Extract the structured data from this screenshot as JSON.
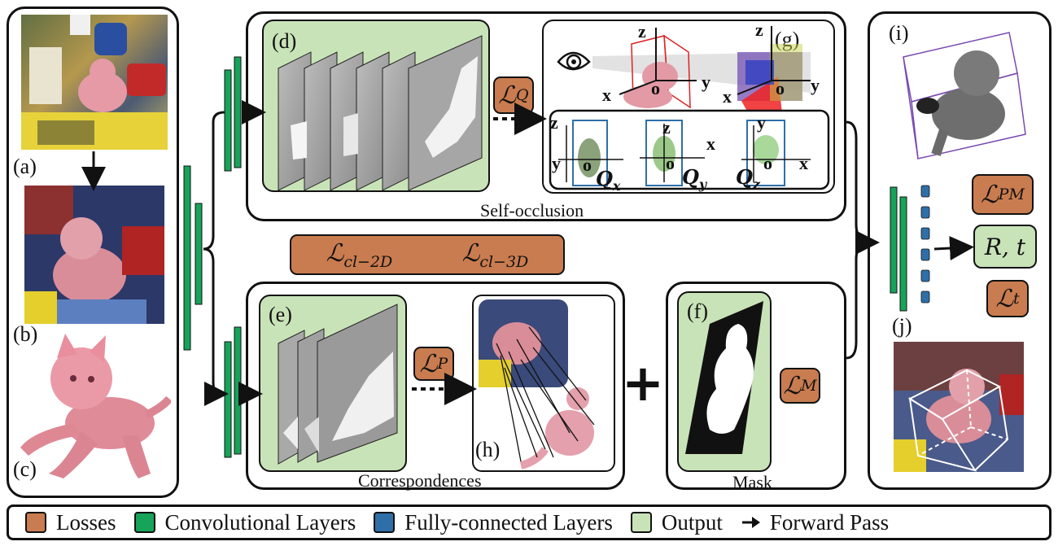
{
  "labels": {
    "a": "(a)",
    "b": "(b)",
    "c": "(c)",
    "d": "(d)",
    "e": "(e)",
    "f": "(f)",
    "g": "(g)",
    "h": "(h)",
    "i": "(i)",
    "j": "(j)"
  },
  "captions": {
    "self_occlusion": "Self-occlusion",
    "correspondences": "Correspondences",
    "mask": "Mask"
  },
  "losses": {
    "L_Q": {
      "main": "ℒ",
      "sub": "Q"
    },
    "L_P": {
      "main": "ℒ",
      "sub": "P"
    },
    "L_M": {
      "main": "ℒ",
      "sub": "M"
    },
    "L_PM": {
      "main": "ℒ",
      "sub": "PM"
    },
    "L_t": {
      "main": "ℒ",
      "sub": "t"
    },
    "L_cl2d": {
      "main": "ℒ",
      "sub": "cl−2D"
    },
    "L_cl3d": {
      "main": "ℒ",
      "sub": "cl−3D"
    }
  },
  "output_pose": "R, t",
  "plus_sign": "+",
  "axes": {
    "x": "x",
    "y": "y",
    "z": "z",
    "o": "o",
    "Qx": "Q",
    "Qx_sub": "x",
    "Qy": "Q",
    "Qy_sub": "y",
    "Qz": "Q",
    "Qz_sub": "z"
  },
  "legend": [
    {
      "label": "Losses",
      "color": "#c97c4f"
    },
    {
      "label": "Convolutional Layers",
      "color": "#17a35a"
    },
    {
      "label": "Fully-connected Layers",
      "color": "#2f6fa8"
    },
    {
      "label": "Output",
      "color": "#c9e3b8"
    },
    {
      "label": "Forward Pass",
      "icon": "arrow-right-icon"
    }
  ],
  "colors": {
    "loss": "#c97c4f",
    "conv": "#17a35a",
    "fc": "#2f6fa8",
    "output": "#c9e3b8"
  }
}
